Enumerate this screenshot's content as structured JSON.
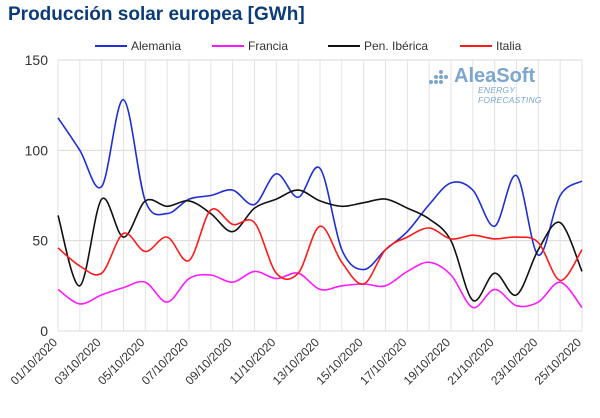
{
  "chart_data": {
    "type": "line",
    "title": "Producción solar europea [GWh]",
    "ylim": [
      0,
      150
    ],
    "yticks": [
      0,
      50,
      100,
      150
    ],
    "grid": true,
    "legend_position": "top",
    "x": [
      "01/10/2020",
      "02/10/2020",
      "03/10/2020",
      "04/10/2020",
      "05/10/2020",
      "06/10/2020",
      "07/10/2020",
      "08/10/2020",
      "09/10/2020",
      "10/10/2020",
      "11/10/2020",
      "12/10/2020",
      "13/10/2020",
      "14/10/2020",
      "15/10/2020",
      "16/10/2020",
      "17/10/2020",
      "18/10/2020",
      "19/10/2020",
      "20/10/2020",
      "21/10/2020",
      "22/10/2020",
      "23/10/2020",
      "24/10/2020",
      "25/10/2020"
    ],
    "xtick_labels": [
      "01/10/2020",
      "03/10/2020",
      "05/10/2020",
      "07/10/2020",
      "09/10/2020",
      "11/10/2020",
      "13/10/2020",
      "15/10/2020",
      "17/10/2020",
      "19/10/2020",
      "21/10/2020",
      "23/10/2020",
      "25/10/2020"
    ],
    "series": [
      {
        "name": "Alemania",
        "color": "#1f2fd6",
        "values": [
          118,
          100,
          80,
          128,
          72,
          65,
          73,
          75,
          78,
          70,
          87,
          74,
          90,
          45,
          34,
          45,
          55,
          70,
          82,
          78,
          58,
          86,
          42,
          75,
          83
        ]
      },
      {
        "name": "Francia",
        "color": "#ff1aff",
        "values": [
          23,
          15,
          20,
          24,
          27,
          16,
          29,
          31,
          27,
          33,
          29,
          32,
          23,
          25,
          26,
          25,
          33,
          38,
          31,
          13,
          23,
          14,
          16,
          27,
          13
        ]
      },
      {
        "name": "Pen. Ibérica",
        "color": "#111111",
        "values": [
          64,
          25,
          73,
          52,
          72,
          69,
          72,
          65,
          55,
          68,
          73,
          78,
          72,
          69,
          71,
          73,
          68,
          62,
          50,
          17,
          32,
          20,
          45,
          60,
          33
        ]
      },
      {
        "name": "Italia",
        "color": "#ff1a1a",
        "values": [
          46,
          36,
          32,
          54,
          44,
          52,
          39,
          67,
          59,
          60,
          32,
          32,
          58,
          38,
          26,
          45,
          52,
          57,
          51,
          53,
          51,
          52,
          49,
          28,
          45
        ]
      }
    ]
  },
  "logo": {
    "name": "AleaSoft",
    "tagline": "ENERGY FORECASTING"
  }
}
